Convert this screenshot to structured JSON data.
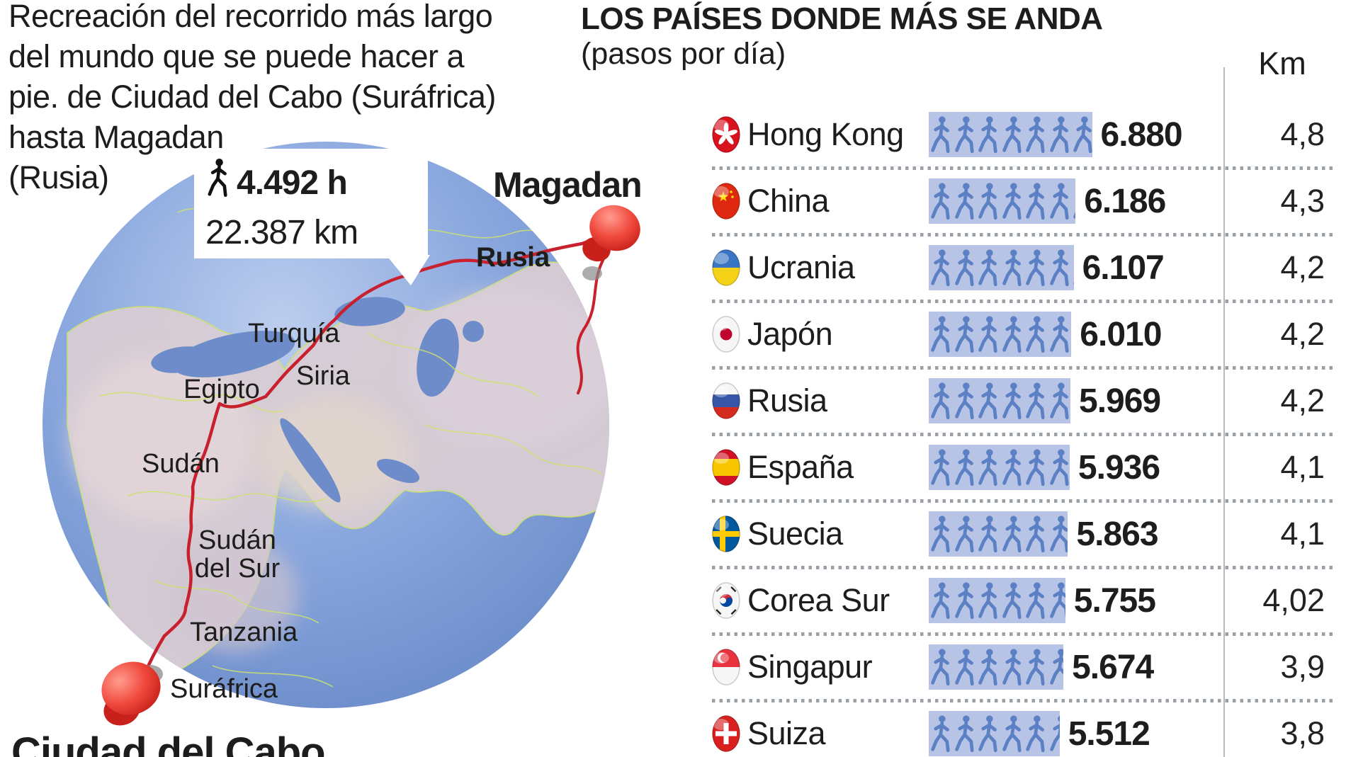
{
  "left_panel": {
    "title_lines": [
      "Recreación del recorrido más largo",
      "del mundo que se puede hacer a",
      "pie. de Ciudad del Cabo (Suráfrica)",
      "hasta Magadan",
      "(Rusia)"
    ],
    "callout": {
      "hours_value": "4.492 h",
      "distance_value": "22.387 km"
    },
    "destination_label": "Magadan",
    "origin_label": "Ciudad del Cabo",
    "map_labels": {
      "rusia": "Rusia",
      "turquia": "Turquía",
      "siria": "Siria",
      "egipto": "Egipto",
      "sudan": "Sudán",
      "sudan_del_sur_line1": "Sudán",
      "sudan_del_sur_line2": "del Sur",
      "tanzania": "Tanzania",
      "surafrica": "Suráfrica"
    }
  },
  "table": {
    "title": "LOS PAÍSES DONDE MÁS SE ANDA",
    "subtitle": "(pasos por día)",
    "km_header": "Km",
    "rows": [
      {
        "country": "Hong Kong",
        "flag": "hong-kong",
        "steps": 6880,
        "steps_label": "6.880",
        "km_label": "4,8"
      },
      {
        "country": "China",
        "flag": "china",
        "steps": 6186,
        "steps_label": "6.186",
        "km_label": "4,3"
      },
      {
        "country": "Ucrania",
        "flag": "ucrania",
        "steps": 6107,
        "steps_label": "6.107",
        "km_label": "4,2"
      },
      {
        "country": "Japón",
        "flag": "japon",
        "steps": 6010,
        "steps_label": "6.010",
        "km_label": "4,2"
      },
      {
        "country": "Rusia",
        "flag": "rusia",
        "steps": 5969,
        "steps_label": "5.969",
        "km_label": "4,2"
      },
      {
        "country": "España",
        "flag": "espana",
        "steps": 5936,
        "steps_label": "5.936",
        "km_label": "4,1"
      },
      {
        "country": "Suecia",
        "flag": "suecia",
        "steps": 5863,
        "steps_label": "5.863",
        "km_label": "4,1"
      },
      {
        "country": "Corea Sur",
        "flag": "corea-sur",
        "steps": 5755,
        "steps_label": "5.755",
        "km_label": "4,02"
      },
      {
        "country": "Singapur",
        "flag": "singapur",
        "steps": 5674,
        "steps_label": "5.674",
        "km_label": "3,9"
      },
      {
        "country": "Suiza",
        "flag": "suiza",
        "steps": 5512,
        "steps_label": "5.512",
        "km_label": "3,8"
      }
    ]
  },
  "chart_data": {
    "type": "bar",
    "title": "LOS PAÍSES DONDE MÁS SE ANDA",
    "subtitle": "(pasos por día)",
    "categories": [
      "Hong Kong",
      "China",
      "Ucrania",
      "Japón",
      "Rusia",
      "España",
      "Suecia",
      "Corea Sur",
      "Singapur",
      "Suiza"
    ],
    "series": [
      {
        "name": "Pasos por día",
        "values": [
          6880,
          6186,
          6107,
          6010,
          5969,
          5936,
          5863,
          5755,
          5674,
          5512
        ]
      },
      {
        "name": "Km",
        "values": [
          4.8,
          4.3,
          4.2,
          4.2,
          4.2,
          4.1,
          4.1,
          4.02,
          3.9,
          3.8
        ]
      }
    ],
    "pictogram_unit": 1000,
    "legend_position": "none",
    "grid": false
  },
  "route_info": {
    "hours": 4492,
    "distance_km": 22387
  },
  "colors": {
    "figure_blue": "#5c80c4",
    "band_blue": "#b7c4e6",
    "route_red": "#c8202d",
    "pin_red": "#e23327",
    "text_dark": "#1d1d1b",
    "rusia_label_navy": "#1c3d6b",
    "ocean_blue": "#7b9cd8",
    "land_pink": "#d8cdd4",
    "border_green": "#cde26e"
  }
}
